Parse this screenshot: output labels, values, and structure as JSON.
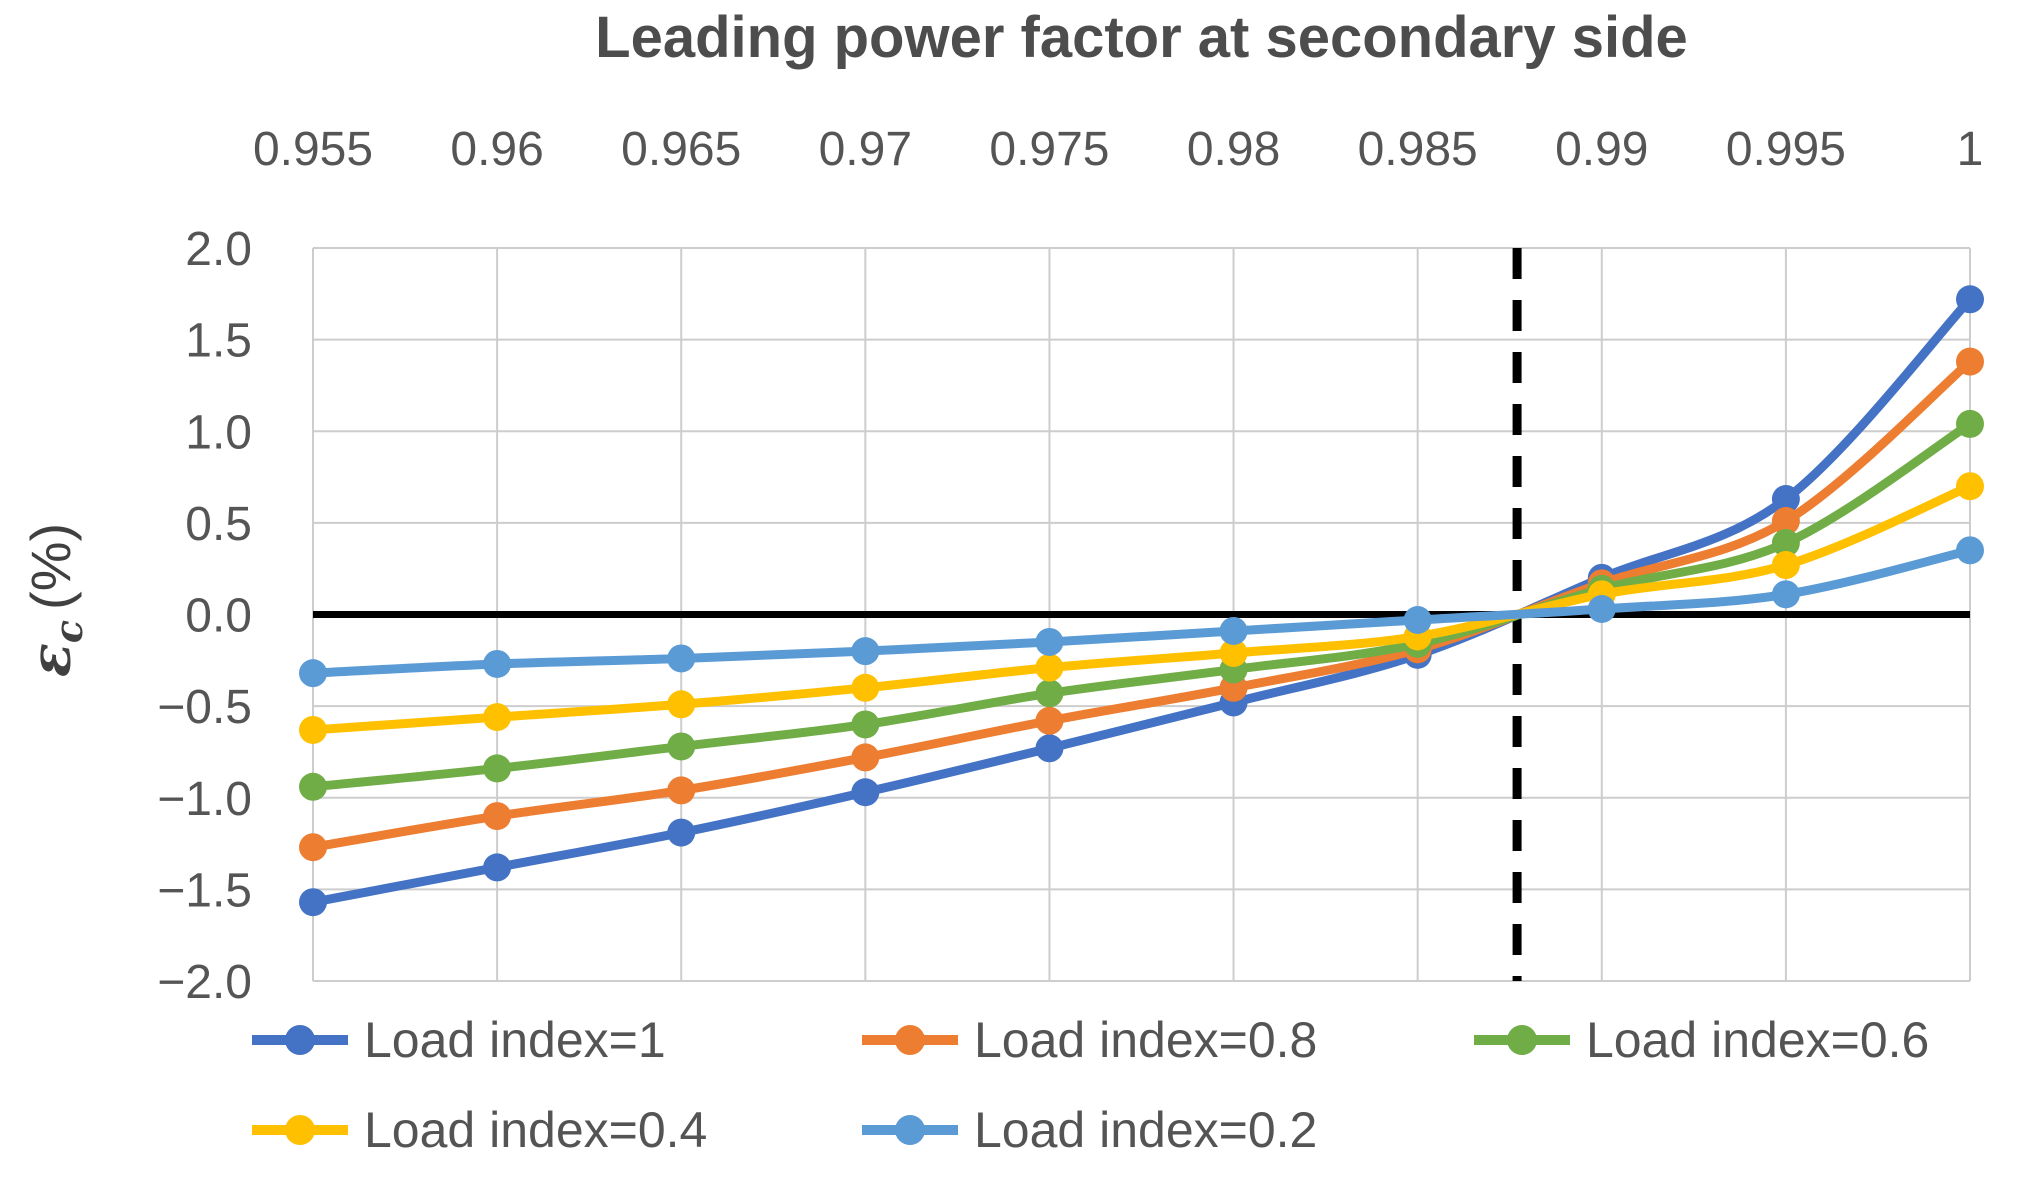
{
  "chart_data": {
    "type": "line",
    "title": "Leading power factor at secondary side",
    "x_axis": {
      "position": "top",
      "range": [
        0.955,
        1
      ],
      "ticks": [
        0.955,
        0.96,
        0.965,
        0.97,
        0.975,
        0.98,
        0.985,
        0.99,
        0.995,
        1
      ],
      "tick_labels": [
        "0.955",
        "0.96",
        "0.965",
        "0.97",
        "0.975",
        "0.98",
        "0.985",
        "0.99",
        "0.995",
        "1"
      ]
    },
    "y_axis": {
      "label": "εc (%)",
      "label_parts": {
        "symbol": "ε",
        "subscript": "c",
        "unit": "(%)"
      },
      "range": [
        -2,
        2
      ],
      "ticks": [
        2,
        1.5,
        1,
        0.5,
        0,
        -0.5,
        -1,
        -1.5,
        -2
      ],
      "tick_labels": [
        "2.0",
        "1.5",
        "1.0",
        "0.5",
        "0.0",
        "−0.5",
        "−1.0",
        "−1.5",
        "−2.0"
      ]
    },
    "x": [
      0.955,
      0.96,
      0.965,
      0.97,
      0.975,
      0.98,
      0.985,
      0.99,
      0.995,
      1
    ],
    "series": [
      {
        "name": "Load index=1",
        "color": "#4472C4",
        "values": [
          -1.57,
          -1.38,
          -1.19,
          -0.97,
          -0.73,
          -0.48,
          -0.22,
          0.2,
          0.63,
          1.72
        ]
      },
      {
        "name": "Load index=0.8",
        "color": "#ED7D31",
        "values": [
          -1.27,
          -1.1,
          -0.96,
          -0.78,
          -0.58,
          -0.4,
          -0.19,
          0.17,
          0.51,
          1.38
        ]
      },
      {
        "name": "Load index=0.6",
        "color": "#70AD47",
        "values": [
          -0.94,
          -0.84,
          -0.72,
          -0.6,
          -0.43,
          -0.3,
          -0.16,
          0.14,
          0.39,
          1.04
        ]
      },
      {
        "name": "Load index=0.4",
        "color": "#FFC000",
        "values": [
          -0.63,
          -0.56,
          -0.49,
          -0.4,
          -0.29,
          -0.21,
          -0.12,
          0.11,
          0.27,
          0.7
        ]
      },
      {
        "name": "Load index=0.2",
        "color": "#5B9BD5",
        "values": [
          -0.32,
          -0.27,
          -0.24,
          -0.2,
          -0.15,
          -0.09,
          -0.03,
          0.03,
          0.11,
          0.35
        ]
      }
    ],
    "annotations": {
      "zero_line": {
        "y": 0,
        "color": "#000000",
        "style": "solid"
      },
      "dashed_vertical_line": {
        "x": 0.9877,
        "color": "#000000",
        "style": "dashed"
      }
    },
    "grid": true,
    "gridline_color": "#cdcdcd",
    "tick_label_color": "#555555",
    "legend": {
      "position": "bottom",
      "rows": [
        [
          0,
          1,
          2
        ],
        [
          3,
          4
        ]
      ]
    }
  }
}
